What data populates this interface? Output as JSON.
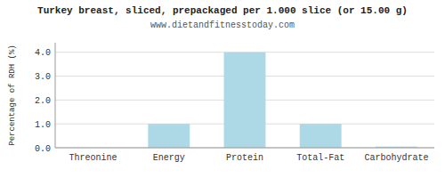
{
  "chart_data": {
    "type": "bar",
    "title": "Turkey breast, sliced, prepackaged per 1.000 slice (or 15.00 g)",
    "subtitle": "www.dietandfitnesstoday.com",
    "categories": [
      "Threonine",
      "Energy",
      "Protein",
      "Total-Fat",
      "Carbohydrate"
    ],
    "values": [
      0.0,
      1.0,
      4.0,
      1.0,
      0.05
    ],
    "color": "#add8e6",
    "ylabel": "Percentage of RDH (%)",
    "ylim": [
      0,
      4.4
    ],
    "yticks": [
      {
        "value": 0.0,
        "label": "0.0"
      },
      {
        "value": 1.0,
        "label": "1.0"
      },
      {
        "value": 2.0,
        "label": "2.0"
      },
      {
        "value": 3.0,
        "label": "3.0"
      },
      {
        "value": 4.0,
        "label": "4.0"
      }
    ],
    "grid": true
  }
}
